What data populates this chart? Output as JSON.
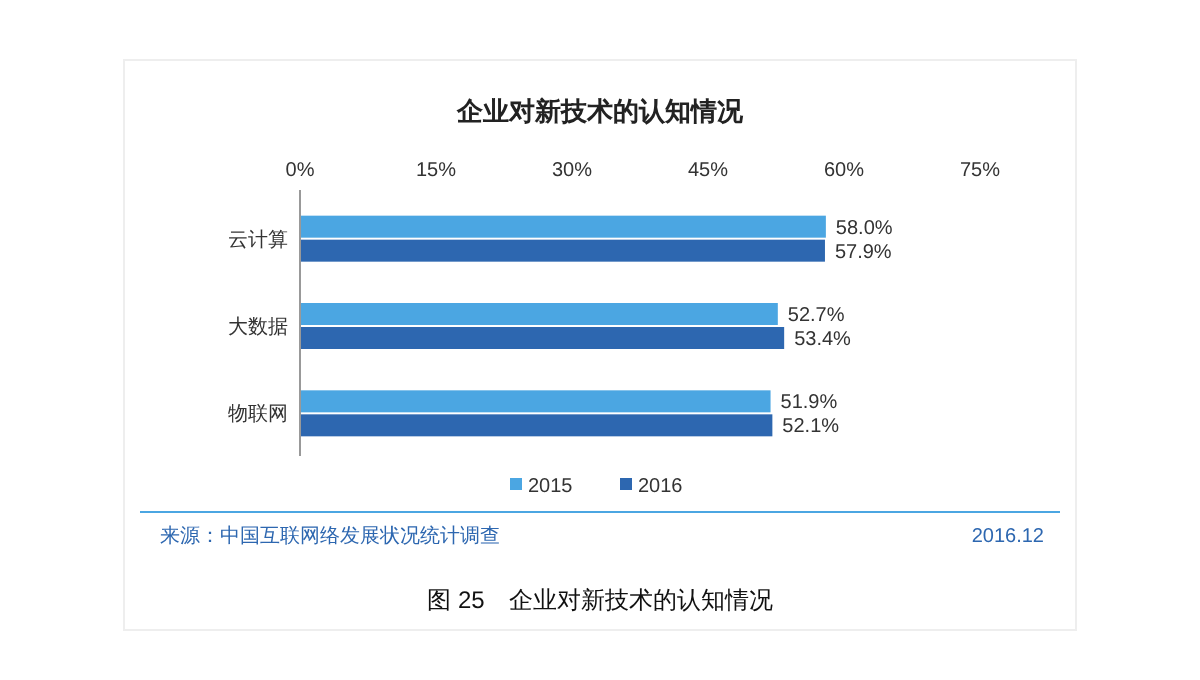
{
  "chart_data": {
    "type": "bar",
    "orientation": "horizontal",
    "title": "企业对新技术的认知情况",
    "categories": [
      "云计算",
      "大数据",
      "物联网"
    ],
    "series": [
      {
        "name": "2015",
        "color": "#4ba6e2",
        "values": [
          58.0,
          52.7,
          51.9
        ],
        "value_labels": [
          "58.0%",
          "52.7%",
          "51.9%"
        ]
      },
      {
        "name": "2016",
        "color": "#2d67b0",
        "values": [
          57.9,
          53.4,
          52.1
        ],
        "value_labels": [
          "57.9%",
          "53.4%",
          "52.1%"
        ]
      }
    ],
    "xlim": [
      0,
      75
    ],
    "xticks": [
      {
        "value": 0,
        "label": "0%"
      },
      {
        "value": 15,
        "label": "15%"
      },
      {
        "value": 30,
        "label": "30%"
      },
      {
        "value": 45,
        "label": "45%"
      },
      {
        "value": 60,
        "label": "60%"
      },
      {
        "value": 75,
        "label": "75%"
      }
    ],
    "legend": "bottom",
    "annotations": [
      "来源：中国互联网络发展状况统计调查",
      "2016.12",
      "图 25　企业对新技术的认知情况"
    ]
  }
}
